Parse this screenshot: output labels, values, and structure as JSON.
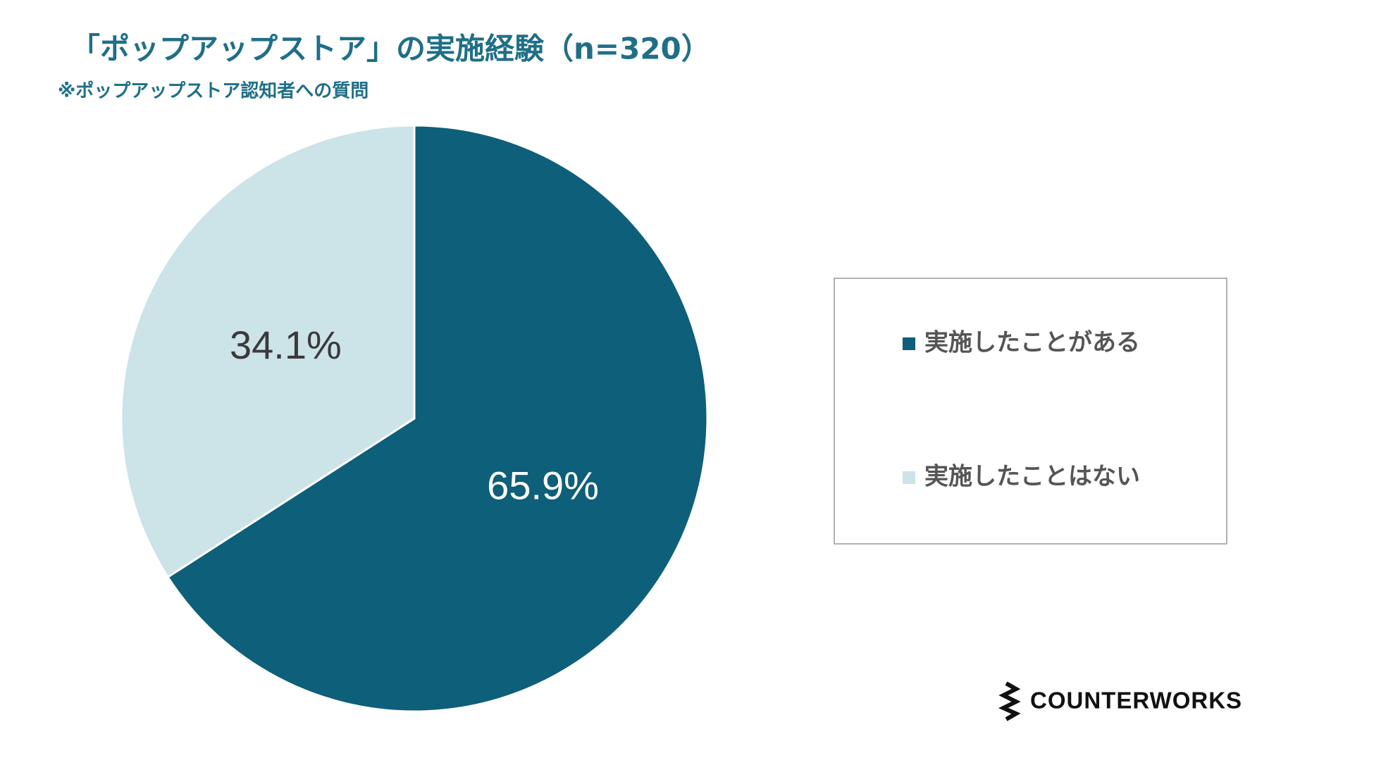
{
  "chart_data": {
    "type": "pie",
    "title": "「ポップアップストア」の実施経験（n=320）",
    "subtitle": "※ポップアップストア認知者への質問",
    "categories": [
      "実施したことがある",
      "実施したことはない"
    ],
    "values": [
      65.9,
      34.1
    ],
    "value_labels": [
      "65.9%",
      "34.1%"
    ],
    "colors": [
      "#0d5f7a",
      "#cce3e8"
    ],
    "label_colors": [
      "#ffffff",
      "#3a3a3a"
    ],
    "logo": "COUNTERWORKS"
  }
}
